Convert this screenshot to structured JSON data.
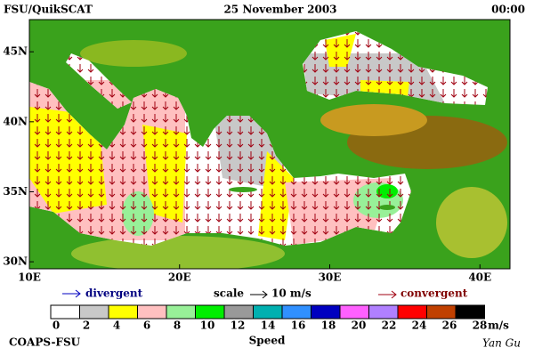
{
  "header": {
    "left": "FSU/QuikSCAT",
    "center": "25 November 2003",
    "right": "00:00"
  },
  "map": {
    "xlim": [
      10,
      42
    ],
    "ylim": [
      29.5,
      47.3
    ],
    "xticks": [
      {
        "value": 10,
        "label": "10E"
      },
      {
        "value": 20,
        "label": "20E"
      },
      {
        "value": 30,
        "label": "30E"
      },
      {
        "value": 40,
        "label": "40E"
      }
    ],
    "yticks": [
      {
        "value": 30,
        "label": "30N"
      },
      {
        "value": 35,
        "label": "35N"
      },
      {
        "value": 40,
        "label": "40N"
      },
      {
        "value": 45,
        "label": "45N"
      }
    ]
  },
  "legend": {
    "divergent": "divergent",
    "scale": "scale",
    "scale_value": "10 m/s",
    "convergent": "convergent"
  },
  "colorbar": {
    "colors": [
      "#ffffff",
      "#c8c8c8",
      "#ffff00",
      "#ffc0c0",
      "#98f098",
      "#00ee00",
      "#999999",
      "#00b0b0",
      "#3090ff",
      "#0000c0",
      "#ff60ff",
      "#b080ff",
      "#ff0000",
      "#c04000",
      "#000000"
    ],
    "ticks": [
      0,
      2,
      4,
      6,
      8,
      10,
      12,
      14,
      16,
      18,
      20,
      22,
      24,
      26,
      28
    ],
    "unit": "m/s",
    "title": "Speed"
  },
  "footer": {
    "left": "COAPS-FSU",
    "right": "Yan Gu"
  }
}
